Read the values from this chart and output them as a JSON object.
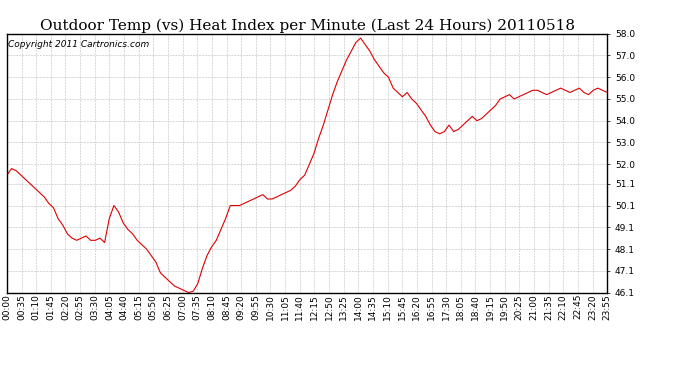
{
  "title": "Outdoor Temp (vs) Heat Index per Minute (Last 24 Hours) 20110518",
  "copyright": "Copyright 2011 Cartronics.com",
  "ylim": [
    46.1,
    58.0
  ],
  "yticks": [
    46.1,
    47.1,
    48.1,
    49.1,
    50.1,
    51.1,
    52.0,
    53.0,
    54.0,
    55.0,
    56.0,
    57.0,
    58.0
  ],
  "line_color": "#dd0000",
  "bg_color": "#ffffff",
  "grid_color": "#bbbbbb",
  "title_fontsize": 11,
  "copyright_fontsize": 6.5,
  "tick_fontsize": 6.5,
  "xtick_labels": [
    "00:00",
    "00:35",
    "01:10",
    "01:45",
    "02:20",
    "02:55",
    "03:30",
    "04:05",
    "04:40",
    "05:15",
    "05:50",
    "06:25",
    "07:00",
    "07:35",
    "08:10",
    "08:45",
    "09:20",
    "09:55",
    "10:30",
    "11:05",
    "11:40",
    "12:15",
    "12:50",
    "13:25",
    "14:00",
    "14:35",
    "15:10",
    "15:45",
    "16:20",
    "16:55",
    "17:30",
    "18:05",
    "18:40",
    "19:15",
    "19:50",
    "20:25",
    "21:00",
    "21:35",
    "22:10",
    "22:45",
    "23:20",
    "23:55"
  ],
  "y_data": [
    51.5,
    51.8,
    51.7,
    51.5,
    51.3,
    51.1,
    50.9,
    50.7,
    50.5,
    50.2,
    50.0,
    49.5,
    49.2,
    48.8,
    48.6,
    48.5,
    48.6,
    48.7,
    48.5,
    48.5,
    48.6,
    48.4,
    49.5,
    50.1,
    49.8,
    49.3,
    49.0,
    48.8,
    48.5,
    48.3,
    48.1,
    47.8,
    47.5,
    47.0,
    46.8,
    46.6,
    46.4,
    46.3,
    46.2,
    46.1,
    46.15,
    46.5,
    47.2,
    47.8,
    48.2,
    48.5,
    49.0,
    49.5,
    50.1,
    50.1,
    50.1,
    50.2,
    50.3,
    50.4,
    50.5,
    50.6,
    50.4,
    50.4,
    50.5,
    50.6,
    50.7,
    50.8,
    51.0,
    51.3,
    51.5,
    52.0,
    52.5,
    53.2,
    53.8,
    54.5,
    55.2,
    55.8,
    56.3,
    56.8,
    57.2,
    57.6,
    57.8,
    57.5,
    57.2,
    56.8,
    56.5,
    56.2,
    56.0,
    55.5,
    55.3,
    55.1,
    55.3,
    55.0,
    54.8,
    54.5,
    54.2,
    53.8,
    53.5,
    53.4,
    53.5,
    53.8,
    53.5,
    53.6,
    53.8,
    54.0,
    54.2,
    54.0,
    54.1,
    54.3,
    54.5,
    54.7,
    55.0,
    55.1,
    55.2,
    55.0,
    55.1,
    55.2,
    55.3,
    55.4,
    55.4,
    55.3,
    55.2,
    55.3,
    55.4,
    55.5,
    55.4,
    55.3,
    55.4,
    55.5,
    55.3,
    55.2,
    55.4,
    55.5,
    55.4,
    55.3
  ]
}
